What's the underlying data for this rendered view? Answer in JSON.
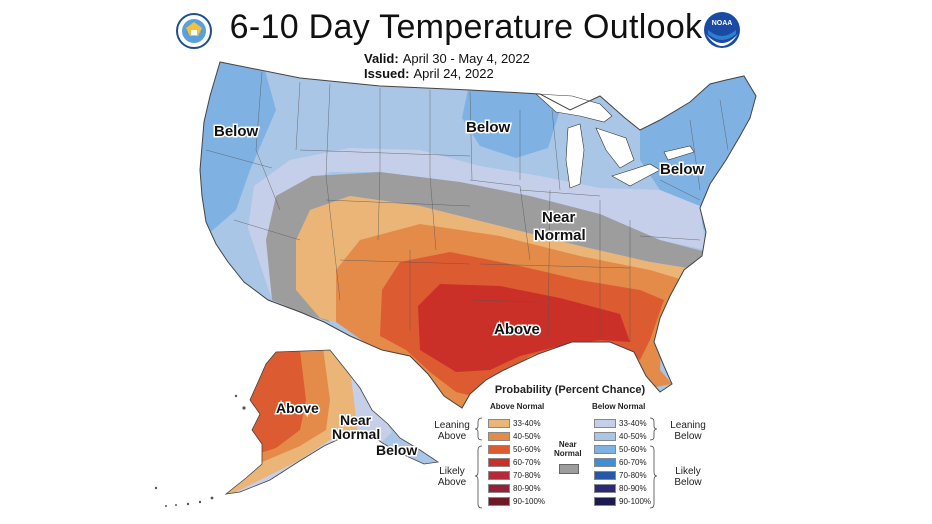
{
  "header": {
    "title": "6-10 Day Temperature Outlook",
    "valid_label": "Valid:",
    "valid_value": "April 30 - May 4, 2022",
    "issued_label": "Issued:",
    "issued_value": "April 24, 2022"
  },
  "logos": {
    "left": "department-of-commerce-seal",
    "right": "noaa-logo",
    "noaa_text": "NOAA"
  },
  "map_labels": {
    "below_west": "Below",
    "below_north": "Below",
    "below_east": "Below",
    "near_normal_1": "Near",
    "near_normal_2": "Normal",
    "above_south": "Above",
    "alaska_above": "Above",
    "alaska_near_1": "Near",
    "alaska_near_2": "Normal",
    "alaska_below": "Below"
  },
  "colors": {
    "below_1": "#c6cfe9",
    "below_2": "#a9c6e6",
    "below_3": "#7fb1e2",
    "near": "#9d9d9d",
    "above_1": "#eab577",
    "above_2": "#e48b4a",
    "above_3": "#dd5b30",
    "above_4": "#cb3028"
  },
  "legend": {
    "title": "Probability (Percent Chance)",
    "above_header": "Above Normal",
    "below_header": "Below Normal",
    "near_label_1": "Near",
    "near_label_2": "Normal",
    "leaning_above_1": "Leaning",
    "leaning_above_2": "Above",
    "likely_above_1": "Likely",
    "likely_above_2": "Above",
    "leaning_below_1": "Leaning",
    "leaning_below_2": "Below",
    "likely_below_1": "Likely",
    "likely_below_2": "Below",
    "above": [
      {
        "label": "33-40%",
        "color": "#eab577"
      },
      {
        "label": "40-50%",
        "color": "#e48b4a"
      },
      {
        "label": "50-60%",
        "color": "#dd5b30"
      },
      {
        "label": "60-70%",
        "color": "#cb3028"
      },
      {
        "label": "70-80%",
        "color": "#b52a3a"
      },
      {
        "label": "80-90%",
        "color": "#93213a"
      },
      {
        "label": "90-100%",
        "color": "#6e1a26"
      }
    ],
    "below": [
      {
        "label": "33-40%",
        "color": "#c6cfe9"
      },
      {
        "label": "40-50%",
        "color": "#a9c6e6"
      },
      {
        "label": "50-60%",
        "color": "#7fb1e2"
      },
      {
        "label": "60-70%",
        "color": "#3e8fd7"
      },
      {
        "label": "70-80%",
        "color": "#2658a8"
      },
      {
        "label": "80-90%",
        "color": "#2a2a78"
      },
      {
        "label": "90-100%",
        "color": "#1c1a4e"
      }
    ],
    "near_color": "#9d9d9d"
  }
}
